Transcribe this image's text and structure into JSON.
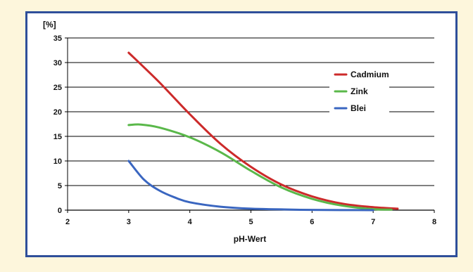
{
  "chart_data": {
    "type": "line",
    "title": "",
    "xlabel": "pH-Wert",
    "ylabel": "[%]",
    "xlim": [
      2,
      8
    ],
    "ylim": [
      0,
      35
    ],
    "x_ticks": [
      "2",
      "3",
      "4",
      "5",
      "6",
      "7",
      "8"
    ],
    "y_ticks": [
      "0",
      "5",
      "10",
      "15",
      "20",
      "25",
      "30",
      "35"
    ],
    "grid": true,
    "legend_position": "right",
    "series": [
      {
        "name": "Cadmium",
        "color": "#cc2a2a",
        "points": [
          [
            3.0,
            32.0
          ],
          [
            3.5,
            26.0
          ],
          [
            4.0,
            19.5
          ],
          [
            4.5,
            13.5
          ],
          [
            5.0,
            8.8
          ],
          [
            5.5,
            5.2
          ],
          [
            6.0,
            2.8
          ],
          [
            6.5,
            1.3
          ],
          [
            7.0,
            0.6
          ],
          [
            7.4,
            0.3
          ]
        ]
      },
      {
        "name": "Zink",
        "color": "#5ab84a",
        "points": [
          [
            3.0,
            17.3
          ],
          [
            3.2,
            17.4
          ],
          [
            3.5,
            16.8
          ],
          [
            4.0,
            14.8
          ],
          [
            4.5,
            11.8
          ],
          [
            5.0,
            8.0
          ],
          [
            5.5,
            4.6
          ],
          [
            6.0,
            2.3
          ],
          [
            6.5,
            0.9
          ],
          [
            7.0,
            0.2
          ],
          [
            7.3,
            0.1
          ]
        ]
      },
      {
        "name": "Blei",
        "color": "#3a66c0",
        "points": [
          [
            3.0,
            10.0
          ],
          [
            3.25,
            6.2
          ],
          [
            3.5,
            4.0
          ],
          [
            3.75,
            2.6
          ],
          [
            4.0,
            1.6
          ],
          [
            4.5,
            0.7
          ],
          [
            5.0,
            0.3
          ],
          [
            5.5,
            0.15
          ],
          [
            6.0,
            0.05
          ],
          [
            7.0,
            0.0
          ]
        ]
      }
    ]
  }
}
